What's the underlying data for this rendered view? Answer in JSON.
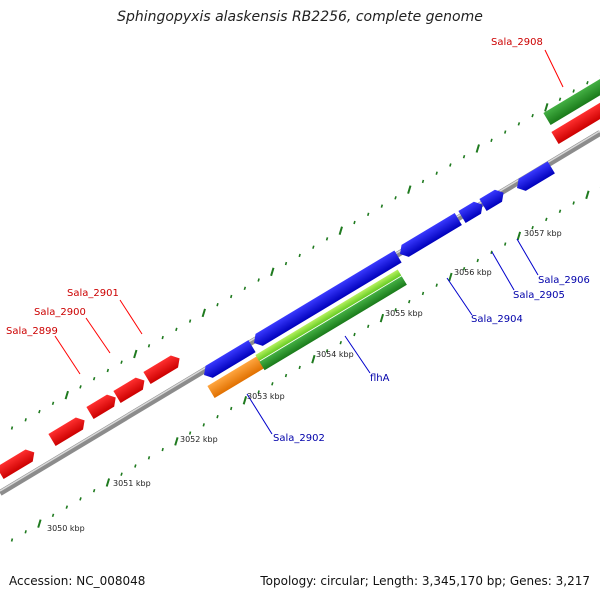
{
  "title": "Sphingopyxis alaskensis RB2256, complete genome",
  "footer": {
    "accession": "Accession: NC_008048",
    "summary": "Topology: circular; Length: 3,345,170 bp; Genes: 3,217"
  },
  "colors": {
    "backbone": "#8c8c8c",
    "red_gene": "#ff0000",
    "blue_gene": "#0000ee",
    "green_gene": "#2a9a2a",
    "lightgreen_gene": "#7ddc2a",
    "orange_gene": "#ff8c00",
    "tick": "#1f7a1f",
    "red_label": "#cc0000",
    "blue_label": "#0000aa"
  },
  "scale_labels": [
    {
      "id": "3050",
      "text": "3050 kbp"
    },
    {
      "id": "3051",
      "text": "3051 kbp"
    },
    {
      "id": "3052",
      "text": "3052 kbp"
    },
    {
      "id": "3053",
      "text": "3053 kbp"
    },
    {
      "id": "3054",
      "text": "3054 kbp"
    },
    {
      "id": "3055",
      "text": "3055 kbp"
    },
    {
      "id": "3056",
      "text": "3056 kbp"
    },
    {
      "id": "3057",
      "text": "3057 kbp"
    }
  ],
  "gene_labels": [
    {
      "id": "sala-2908",
      "text": "Sala_2908",
      "color": "#cc0000"
    },
    {
      "id": "sala-2901",
      "text": "Sala_2901",
      "color": "#cc0000"
    },
    {
      "id": "sala-2900",
      "text": "Sala_2900",
      "color": "#cc0000"
    },
    {
      "id": "sala-2899",
      "text": "Sala_2899",
      "color": "#cc0000"
    },
    {
      "id": "sala-2906",
      "text": "Sala_2906",
      "color": "#0000aa"
    },
    {
      "id": "sala-2905",
      "text": "Sala_2905",
      "color": "#0000aa"
    },
    {
      "id": "sala-2904",
      "text": "Sala_2904",
      "color": "#0000aa"
    },
    {
      "id": "flha",
      "text": "flhA",
      "color": "#0000aa"
    },
    {
      "id": "sala-2902",
      "text": "Sala_2902",
      "color": "#0000aa"
    }
  ]
}
